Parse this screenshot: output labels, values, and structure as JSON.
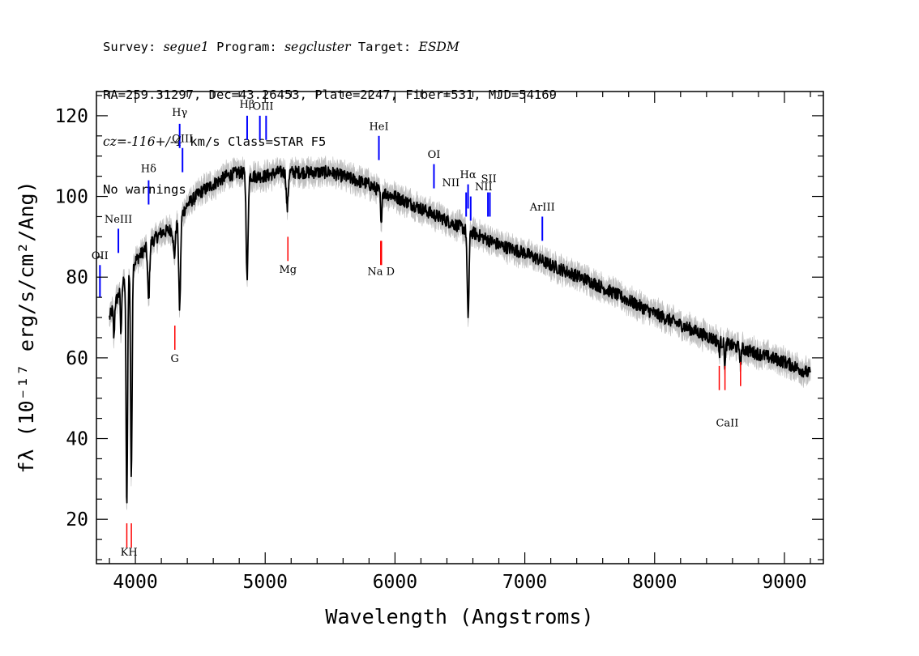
{
  "header": {
    "line1": {
      "survey_label": "Survey: ",
      "survey": "segue1",
      "program_label": " Program: ",
      "program": "segcluster",
      "target_label": " Target: ",
      "target": "ESDM"
    },
    "line2": "RA=259.31297, Dec=43.26453, Plate=2247, Fiber=531, MJD=54169",
    "line3": {
      "cz": "cz=-116+/-4",
      "rest": " km/s Class=STAR F5"
    },
    "line4": "No warnings."
  },
  "chart_data": {
    "type": "line",
    "xlabel": "Wavelength (Angstroms)",
    "ylabel": "fλ (10⁻¹⁷ erg/s/cm²/Ang)",
    "xlim": [
      3700,
      9300
    ],
    "ylim": [
      9,
      126
    ],
    "x_ticks": [
      4000,
      5000,
      6000,
      7000,
      8000,
      9000
    ],
    "y_ticks": [
      20,
      40,
      60,
      80,
      100,
      120
    ],
    "grid": false,
    "colors": {
      "flux": "#000000",
      "error": "#c0c0c0",
      "emission": "#0000ff",
      "absorption": "#ff0000"
    },
    "spectrum_knots": {
      "x": [
        3800,
        3900,
        4000,
        4100,
        4200,
        4300,
        4400,
        4500,
        4600,
        4700,
        4800,
        4900,
        5000,
        5100,
        5200,
        5300,
        5400,
        5500,
        5600,
        5700,
        5800,
        5900,
        6000,
        6200,
        6400,
        6600,
        6800,
        7000,
        7200,
        7500,
        8000,
        8500,
        9000,
        9200
      ],
      "y": [
        70,
        78,
        84,
        88,
        91,
        92,
        98,
        101,
        103,
        105,
        106,
        105,
        105,
        106,
        106,
        106,
        106,
        106,
        105,
        104,
        103,
        101,
        100,
        97,
        94,
        91,
        88,
        86,
        83,
        79,
        71,
        64,
        59,
        56
      ]
    },
    "absorption_features": [
      {
        "x": 3835,
        "depth": 8,
        "width": 6
      },
      {
        "x": 3889,
        "depth": 12,
        "width": 6
      },
      {
        "x": 3934,
        "depth": 58,
        "width": 8
      },
      {
        "x": 3969,
        "depth": 52,
        "width": 8
      },
      {
        "x": 4102,
        "depth": 14,
        "width": 10
      },
      {
        "x": 4300,
        "depth": 7,
        "width": 10
      },
      {
        "x": 4341,
        "depth": 22,
        "width": 10
      },
      {
        "x": 4861,
        "depth": 26,
        "width": 10
      },
      {
        "x": 5170,
        "depth": 9,
        "width": 10
      },
      {
        "x": 5893,
        "depth": 9,
        "width": 6
      },
      {
        "x": 6563,
        "depth": 21,
        "width": 10
      },
      {
        "x": 8498,
        "depth": 3,
        "width": 6
      },
      {
        "x": 8542,
        "depth": 6,
        "width": 6
      },
      {
        "x": 8662,
        "depth": 4,
        "width": 6
      }
    ],
    "emission_lines": [
      {
        "label": "OII",
        "x": 3727,
        "ymin": 75,
        "ymax": 83
      },
      {
        "label": "NeIII",
        "x": 3869,
        "ymin": 86,
        "ymax": 92
      },
      {
        "label": "Hδ",
        "x": 4102,
        "ymin": 98,
        "ymax": 104
      },
      {
        "label": "Hγ",
        "x": 4341,
        "ymin": 112,
        "ymax": 118
      },
      {
        "label": "OIII",
        "x": 4363,
        "ymin": 106,
        "ymax": 112
      },
      {
        "label": "Hβ",
        "x": 4861,
        "ymin": 114,
        "ymax": 120
      },
      {
        "label": "OIII",
        "x": 4959,
        "ymin": 114,
        "ymax": 120
      },
      {
        "label": "OIII",
        "x": 5007,
        "ymin": 114,
        "ymax": 120
      },
      {
        "label": "HeI",
        "x": 5876,
        "ymin": 109,
        "ymax": 115
      },
      {
        "label": "OI",
        "x": 6300,
        "ymin": 102,
        "ymax": 108
      },
      {
        "label": "NII",
        "x": 6548,
        "ymin": 95,
        "ymax": 101
      },
      {
        "label": "Hα",
        "x": 6563,
        "ymin": 97,
        "ymax": 103
      },
      {
        "label": "NII",
        "x": 6583,
        "ymin": 94,
        "ymax": 100
      },
      {
        "label": "SII",
        "x": 6716,
        "ymin": 95,
        "ymax": 101
      },
      {
        "label": "SII",
        "x": 6731,
        "ymin": 95,
        "ymax": 101
      },
      {
        "label": "ArIII",
        "x": 7135,
        "ymin": 89,
        "ymax": 95
      }
    ],
    "absorption_lines": [
      {
        "label": "K",
        "x": 3934,
        "ymin": 13,
        "ymax": 19
      },
      {
        "label": "H",
        "x": 3969,
        "ymin": 13,
        "ymax": 19
      },
      {
        "label": "G",
        "x": 4304,
        "ymin": 62,
        "ymax": 68
      },
      {
        "label": "Mg",
        "x": 5175,
        "ymin": 84,
        "ymax": 90
      },
      {
        "label": "Na",
        "x": 5890,
        "ymin": 83,
        "ymax": 89
      },
      {
        "label": "D",
        "x": 5896,
        "ymin": 83,
        "ymax": 89
      },
      {
        "label": "CaII",
        "x": 8498,
        "ymin": 52,
        "ymax": 58
      },
      {
        "label": "CaII",
        "x": 8542,
        "ymin": 52,
        "ymax": 58
      },
      {
        "label": "CaII",
        "x": 8662,
        "ymin": 53,
        "ymax": 59
      }
    ],
    "line_label_texts": [
      {
        "key": "oii",
        "text": "OII",
        "ref_x": 3727,
        "ref_y": 84.5
      },
      {
        "key": "neiii",
        "text": "NeIII",
        "ref_x": 3869,
        "ref_y": 93.5
      },
      {
        "key": "hdelta",
        "text": "Hδ",
        "ref_x": 4102,
        "ref_y": 106
      },
      {
        "key": "hgamma",
        "text": "Hγ",
        "ref_x": 4341,
        "ref_y": 120
      },
      {
        "key": "oiii-4363",
        "text": "OIII",
        "ref_x": 4363,
        "ref_y": 113.5
      },
      {
        "key": "hbeta",
        "text": "Hβ",
        "ref_x": 4861,
        "ref_y": 122
      },
      {
        "key": "oiii-4983",
        "text": "OIII",
        "ref_x": 4983,
        "ref_y": 121.5
      },
      {
        "key": "hei",
        "text": "HeI",
        "ref_x": 5876,
        "ref_y": 116.5
      },
      {
        "key": "oi",
        "text": "OI",
        "ref_x": 6300,
        "ref_y": 109.5
      },
      {
        "key": "nii-6548",
        "text": "NII",
        "ref_x": 6430,
        "ref_y": 102.5
      },
      {
        "key": "halpha",
        "text": "Hα",
        "ref_x": 6563,
        "ref_y": 104.5
      },
      {
        "key": "nii-6583",
        "text": "NII",
        "ref_x": 6683,
        "ref_y": 101.5
      },
      {
        "key": "sii",
        "text": "SII",
        "ref_x": 6723,
        "ref_y": 103.5
      },
      {
        "key": "ariii",
        "text": "ArIII",
        "ref_x": 7135,
        "ref_y": 96.5
      },
      {
        "key": "kh",
        "text": "KH",
        "ref_x": 3951,
        "ref_y": 11
      },
      {
        "key": "g",
        "text": "G",
        "ref_x": 4304,
        "ref_y": 59
      },
      {
        "key": "mg",
        "text": "Mg",
        "ref_x": 5175,
        "ref_y": 81
      },
      {
        "key": "nad",
        "text": "Na  D",
        "ref_x": 5893,
        "ref_y": 80.5
      },
      {
        "key": "caii",
        "text": "CaII",
        "ref_x": 8560,
        "ref_y": 43
      }
    ]
  }
}
